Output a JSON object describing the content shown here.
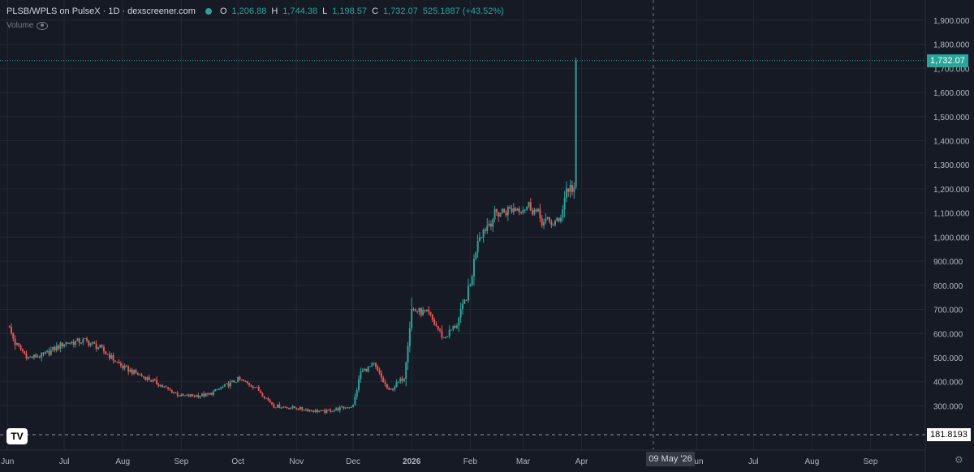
{
  "header": {
    "title": "PLSB/WPLS on PulseX · 1D · dexscreener.com",
    "ohlc": {
      "o_label": "O",
      "o_value": "1,206.88",
      "h_label": "H",
      "h_value": "1,744.38",
      "l_label": "L",
      "l_value": "1,198.57",
      "c_label": "C",
      "c_value": "1,732.07",
      "change": "525.1887 (+43.52%)"
    },
    "volume_label": "Volume"
  },
  "colors": {
    "up": "#26a69a",
    "down": "#ef5350",
    "bg": "#161a25",
    "grid": "#242833",
    "text": "#b2b5be"
  },
  "icons": {
    "logo": "tradingview-logo",
    "settings": "gear-icon",
    "visibility": "eye-icon"
  },
  "logo_text": "TV",
  "crosshair": {
    "date_label": "09 May '26",
    "price_label": "181.8193"
  },
  "last_price_label": "1,732.07",
  "chart_data": {
    "type": "candlestick",
    "y_range": [
      150,
      1950
    ],
    "y_ticks": [
      300,
      400,
      500,
      600,
      700,
      800,
      900,
      1000,
      1100,
      1200,
      1300,
      1400,
      1500,
      1600,
      1700,
      1800,
      1900
    ],
    "y_tick_labels": [
      "300.000",
      "400.000",
      "500.000",
      "600.000",
      "700.000",
      "800.000",
      "900.000",
      "1,000.000",
      "1,100.000",
      "1,200.000",
      "1,300.000",
      "1,400.000",
      "1,500.000",
      "1,600.000",
      "1,700.000",
      "1,800.000",
      "1,900.000"
    ],
    "x_ticks": [
      "Jun",
      "Jul",
      "Aug",
      "Sep",
      "Oct",
      "Nov",
      "Dec",
      "2026",
      "Feb",
      "Mar",
      "Apr",
      "Jun",
      "Jul",
      "Aug",
      "Sep"
    ],
    "close_series": [
      {
        "date": "2025-06-01",
        "close": 640
      },
      {
        "date": "2025-06-05",
        "close": 560
      },
      {
        "date": "2025-06-12",
        "close": 500
      },
      {
        "date": "2025-06-20",
        "close": 510
      },
      {
        "date": "2025-07-01",
        "close": 560
      },
      {
        "date": "2025-07-12",
        "close": 570
      },
      {
        "date": "2025-07-20",
        "close": 540
      },
      {
        "date": "2025-08-01",
        "close": 460
      },
      {
        "date": "2025-08-15",
        "close": 410
      },
      {
        "date": "2025-09-01",
        "close": 340
      },
      {
        "date": "2025-09-15",
        "close": 345
      },
      {
        "date": "2025-10-01",
        "close": 410
      },
      {
        "date": "2025-10-10",
        "close": 380
      },
      {
        "date": "2025-10-20",
        "close": 300
      },
      {
        "date": "2025-11-01",
        "close": 290
      },
      {
        "date": "2025-11-15",
        "close": 275
      },
      {
        "date": "2025-12-01",
        "close": 300
      },
      {
        "date": "2025-12-05",
        "close": 440
      },
      {
        "date": "2025-12-12",
        "close": 470
      },
      {
        "date": "2025-12-20",
        "close": 360
      },
      {
        "date": "2025-12-28",
        "close": 420
      },
      {
        "date": "2026-01-01",
        "close": 700
      },
      {
        "date": "2026-01-10",
        "close": 680
      },
      {
        "date": "2026-01-18",
        "close": 580
      },
      {
        "date": "2026-01-25",
        "close": 640
      },
      {
        "date": "2026-02-01",
        "close": 800
      },
      {
        "date": "2026-02-05",
        "close": 1000
      },
      {
        "date": "2026-02-15",
        "close": 1100
      },
      {
        "date": "2026-02-25",
        "close": 1120
      },
      {
        "date": "2026-03-05",
        "close": 1130
      },
      {
        "date": "2026-03-12",
        "close": 1060
      },
      {
        "date": "2026-03-20",
        "close": 1060
      },
      {
        "date": "2026-03-24",
        "close": 1200
      },
      {
        "date": "2026-03-28",
        "close": 1206.88
      },
      {
        "date": "2026-03-29",
        "close": 1732.07
      }
    ]
  }
}
